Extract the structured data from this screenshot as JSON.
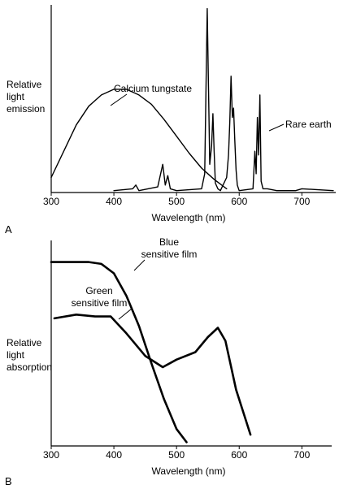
{
  "chart_data": [
    {
      "panel": "A",
      "type": "line",
      "ylabel": [
        "Relative",
        "light",
        "emission"
      ],
      "xlabel": "Wavelength (nm)",
      "xlim": [
        300,
        750
      ],
      "xticks": [
        300,
        400,
        500,
        600,
        700
      ],
      "ylim": [
        0,
        1
      ],
      "grid": false,
      "series": [
        {
          "name": "Calcium tungstate",
          "x": [
            300,
            320,
            340,
            360,
            380,
            400,
            420,
            440,
            460,
            480,
            500,
            520,
            540,
            560,
            580
          ],
          "y": [
            0.08,
            0.22,
            0.36,
            0.46,
            0.52,
            0.55,
            0.55,
            0.52,
            0.47,
            0.39,
            0.3,
            0.21,
            0.13,
            0.07,
            0.02
          ]
        },
        {
          "name": "Rare earth",
          "x": [
            400,
            430,
            435,
            440,
            470,
            478,
            482,
            486,
            490,
            500,
            540,
            545,
            549,
            553,
            556,
            558,
            560,
            562,
            566,
            570,
            580,
            583,
            585,
            587,
            589,
            591,
            593,
            595,
            597,
            600,
            622,
            625,
            627,
            629,
            631,
            633,
            635,
            638,
            645,
            660,
            690,
            700,
            750
          ],
          "y": [
            0.01,
            0.02,
            0.04,
            0.01,
            0.03,
            0.15,
            0.04,
            0.09,
            0.02,
            0.01,
            0.02,
            0.1,
            0.98,
            0.15,
            0.25,
            0.42,
            0.22,
            0.05,
            0.02,
            0.01,
            0.08,
            0.2,
            0.38,
            0.62,
            0.4,
            0.45,
            0.28,
            0.12,
            0.04,
            0.01,
            0.02,
            0.22,
            0.1,
            0.4,
            0.2,
            0.52,
            0.06,
            0.02,
            0.02,
            0.01,
            0.01,
            0.02,
            0.01
          ]
        }
      ]
    },
    {
      "panel": "B",
      "type": "line",
      "ylabel": [
        "Relative",
        "light",
        "absorption"
      ],
      "xlabel": "Wavelength (nm)",
      "xlim": [
        300,
        750
      ],
      "xticks": [
        300,
        400,
        500,
        600,
        700
      ],
      "ylim": [
        0,
        1
      ],
      "grid": false,
      "series": [
        {
          "name": "Blue sensitive film",
          "x": [
            300,
            360,
            380,
            400,
            420,
            440,
            460,
            480,
            500,
            516
          ],
          "y": [
            0.98,
            0.98,
            0.97,
            0.92,
            0.8,
            0.64,
            0.44,
            0.25,
            0.09,
            0.02
          ]
        },
        {
          "name": "Green sensitive film",
          "x": [
            305,
            340,
            370,
            395,
            420,
            450,
            478,
            500,
            530,
            550,
            566,
            578,
            595,
            618
          ],
          "y": [
            0.68,
            0.7,
            0.69,
            0.69,
            0.6,
            0.48,
            0.42,
            0.46,
            0.5,
            0.58,
            0.63,
            0.56,
            0.3,
            0.06
          ]
        }
      ]
    }
  ],
  "panelA": {
    "letter": "A",
    "ylabel_lines": [
      "Relative",
      "light",
      "emission"
    ],
    "xlabel": "Wavelength (nm)",
    "ticks": [
      "300",
      "400",
      "500",
      "600",
      "700"
    ],
    "annotations": {
      "calcium": "Calcium tungstate",
      "rare": "Rare earth"
    }
  },
  "panelB": {
    "letter": "B",
    "ylabel_lines": [
      "Relative",
      "light",
      "absorption"
    ],
    "xlabel": "Wavelength (nm)",
    "ticks": [
      "300",
      "400",
      "500",
      "600",
      "700"
    ],
    "annotations": {
      "blue": [
        "Blue",
        "sensitive film"
      ],
      "green": [
        "Green",
        "sensitive film"
      ]
    }
  }
}
